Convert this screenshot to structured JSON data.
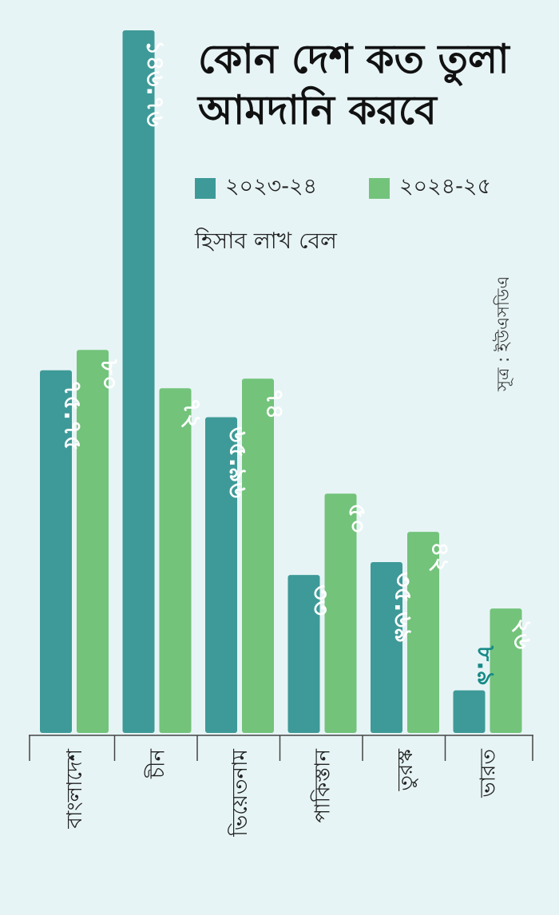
{
  "chart_data": {
    "type": "bar",
    "title": [
      "কোন দেশ কত তুলা",
      "আমদানি করবে"
    ],
    "unit_note": "হিসাব লাখ বেল",
    "source": "সূত্র : ইউএসডিএ",
    "categories": [
      "বাংলাদেশ",
      "চীন",
      "ভিয়েতনাম",
      "পাকিস্তান",
      "তুরস্ক",
      "ভারত"
    ],
    "series": [
      {
        "name": "২০২৩-২৪",
        "color": "#3e9a98",
        "values": [
          75.75,
          146.76,
          65.96,
          33,
          35.69,
          8.9
        ],
        "labels": [
          "৭৫.৭৫",
          "১৪৬.৭৬",
          "৬৫.৯৬",
          "৩৩",
          "৩৫.৬৯",
          "৮.৯"
        ]
      },
      {
        "name": "২০২৪-২৫",
        "color": "#73c37b",
        "values": [
          80,
          72,
          74,
          50,
          42,
          26
        ],
        "labels": [
          "৮০",
          "৭২",
          "৭৪",
          "৫০",
          "৪২",
          "২৬"
        ]
      }
    ],
    "ylim": [
      0,
      146.76
    ],
    "grid": false,
    "legend_position": "top",
    "highlight_label_color": "#168a86"
  }
}
